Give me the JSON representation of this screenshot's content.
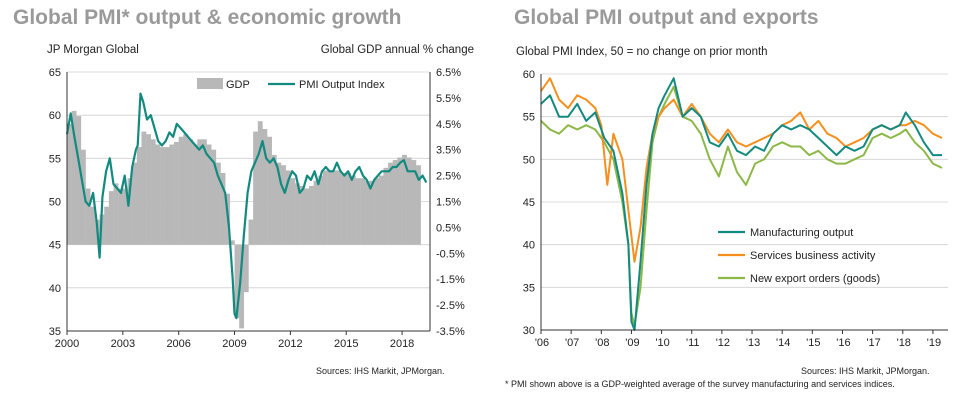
{
  "left": {
    "title": "Global PMI* output & economic growth",
    "left_axis_label": "JP Morgan Global",
    "right_axis_label": "Global GDP annual % change",
    "source": "Sources: IHS Markit, JPMorgan."
  },
  "right": {
    "title": "Global PMI output and exports",
    "axis_label": "Global PMI Index, 50 = no change on prior month",
    "source": "Sources: IHS Markit, JPMorgan."
  },
  "footnote": "* PMI shown above is a GDP-weighted average of the survey manufacturing and services indices.",
  "colors": {
    "gdp": "#b8b8b8",
    "pmi": "#138a80",
    "services": "#f5901e",
    "exports": "#8cb847",
    "grid": "#d0d0d0",
    "title": "#9a9a9a"
  },
  "chart_data": [
    {
      "type": "bar+line",
      "title": "Global PMI* output & economic growth",
      "ylabel_left": "JP Morgan Global",
      "ylabel_right": "Global GDP annual % change",
      "x_ticks": [
        "2000",
        "2003",
        "2006",
        "2009",
        "2012",
        "2015",
        "2018"
      ],
      "y_left_ticks": [
        "65",
        "60",
        "55",
        "50",
        "45",
        "40",
        "35"
      ],
      "y_right_ticks": [
        "6.5%",
        "5.5%",
        "4.5%",
        "3.5%",
        "2.5%",
        "1.5%",
        "0.5%",
        "-0.5%",
        "-1.5%",
        "-2.5%",
        "-3.5%"
      ],
      "ylim_left": [
        35,
        65
      ],
      "ylim_right": [
        -3.5,
        6.5
      ],
      "xlim": [
        2000.0,
        2019.5
      ],
      "legend": [
        "GDP",
        "PMI Output Index"
      ],
      "legend_position": "top-right",
      "series": [
        {
          "name": "GDP",
          "kind": "bar",
          "x": [
            2000.0,
            2000.25,
            2000.5,
            2000.75,
            2001.0,
            2001.25,
            2001.5,
            2001.75,
            2002.0,
            2002.25,
            2002.5,
            2002.75,
            2003.0,
            2003.25,
            2003.5,
            2003.75,
            2004.0,
            2004.25,
            2004.5,
            2004.75,
            2005.0,
            2005.25,
            2005.5,
            2005.75,
            2006.0,
            2006.25,
            2006.5,
            2006.75,
            2007.0,
            2007.25,
            2007.5,
            2007.75,
            2008.0,
            2008.25,
            2008.5,
            2008.75,
            2009.0,
            2009.25,
            2009.5,
            2009.75,
            2010.0,
            2010.25,
            2010.5,
            2010.75,
            2011.0,
            2011.25,
            2011.5,
            2011.75,
            2012.0,
            2012.25,
            2012.5,
            2012.75,
            2013.0,
            2013.25,
            2013.5,
            2013.75,
            2014.0,
            2014.25,
            2014.5,
            2014.75,
            2015.0,
            2015.25,
            2015.5,
            2015.75,
            2016.0,
            2016.25,
            2016.5,
            2016.75,
            2017.0,
            2017.25,
            2017.5,
            2017.75,
            2018.0,
            2018.25,
            2018.5,
            2018.75
          ],
          "values": [
            4.5,
            5.0,
            4.8,
            3.5,
            2.0,
            1.3,
            0.8,
            1.0,
            1.3,
            1.9,
            2.2,
            2.0,
            2.0,
            2.4,
            3.0,
            3.6,
            4.2,
            4.1,
            3.9,
            3.7,
            3.6,
            3.6,
            3.7,
            3.8,
            4.0,
            4.1,
            3.9,
            3.7,
            3.9,
            3.9,
            3.7,
            3.5,
            3.0,
            2.6,
            1.8,
            0.0,
            -3.0,
            -3.4,
            -2.0,
            0.8,
            4.2,
            4.6,
            4.3,
            4.0,
            3.3,
            3.0,
            2.9,
            2.7,
            2.4,
            2.2,
            2.1,
            2.0,
            2.1,
            2.3,
            2.5,
            2.7,
            2.7,
            2.7,
            2.7,
            2.6,
            2.6,
            2.5,
            2.4,
            2.4,
            2.3,
            2.3,
            2.4,
            2.5,
            2.8,
            3.0,
            3.1,
            3.2,
            3.3,
            3.2,
            3.1,
            2.9
          ]
        },
        {
          "name": "PMI Output Index",
          "kind": "line",
          "x": [
            2000.0,
            2000.2,
            2000.4,
            2000.6,
            2000.8,
            2001.0,
            2001.2,
            2001.4,
            2001.6,
            2001.75,
            2001.9,
            2002.1,
            2002.3,
            2002.5,
            2002.7,
            2002.9,
            2003.1,
            2003.3,
            2003.5,
            2003.7,
            2003.8,
            2003.95,
            2004.1,
            2004.3,
            2004.5,
            2004.7,
            2004.9,
            2005.1,
            2005.3,
            2005.5,
            2005.7,
            2005.9,
            2006.1,
            2006.3,
            2006.5,
            2006.7,
            2006.9,
            2007.1,
            2007.3,
            2007.5,
            2007.7,
            2007.9,
            2008.1,
            2008.3,
            2008.5,
            2008.7,
            2008.9,
            2009.0,
            2009.1,
            2009.3,
            2009.5,
            2009.7,
            2009.9,
            2010.1,
            2010.3,
            2010.5,
            2010.7,
            2010.9,
            2011.1,
            2011.3,
            2011.5,
            2011.7,
            2011.9,
            2012.1,
            2012.3,
            2012.5,
            2012.7,
            2012.9,
            2013.1,
            2013.3,
            2013.5,
            2013.7,
            2013.9,
            2014.1,
            2014.3,
            2014.5,
            2014.7,
            2014.9,
            2015.1,
            2015.3,
            2015.5,
            2015.7,
            2015.9,
            2016.1,
            2016.3,
            2016.5,
            2016.7,
            2016.9,
            2017.1,
            2017.3,
            2017.5,
            2017.7,
            2017.9,
            2018.1,
            2018.3,
            2018.5,
            2018.7,
            2018.9,
            2019.1,
            2019.3
          ],
          "values": [
            57.8,
            60.2,
            57.5,
            55.0,
            52.5,
            50.0,
            49.5,
            51.0,
            47.5,
            43.5,
            50.5,
            53.5,
            55.0,
            52.0,
            51.5,
            51.0,
            53.0,
            49.5,
            54.0,
            56.0,
            56.5,
            62.5,
            61.5,
            59.5,
            60.0,
            58.5,
            57.0,
            56.5,
            57.0,
            58.0,
            57.5,
            59.0,
            58.5,
            58.0,
            57.5,
            57.0,
            56.5,
            56.0,
            56.5,
            55.5,
            55.0,
            54.5,
            53.0,
            52.0,
            51.0,
            47.0,
            41.0,
            37.0,
            36.5,
            40.5,
            46.0,
            51.0,
            53.5,
            54.5,
            55.5,
            57.0,
            55.0,
            54.5,
            55.0,
            54.0,
            52.0,
            51.0,
            52.5,
            53.5,
            53.0,
            51.0,
            51.5,
            53.0,
            52.5,
            53.5,
            52.0,
            53.5,
            54.0,
            53.5,
            53.5,
            54.5,
            53.5,
            53.0,
            53.5,
            52.5,
            53.5,
            54.0,
            53.0,
            52.5,
            51.5,
            52.5,
            53.0,
            53.5,
            53.5,
            53.5,
            54.0,
            54.0,
            54.5,
            54.8,
            53.5,
            53.5,
            53.5,
            52.5,
            53.0,
            52.2
          ]
        }
      ]
    },
    {
      "type": "line",
      "title": "Global PMI output and exports",
      "ylabel": "Global PMI Index, 50 = no change on prior month",
      "x_ticks": [
        "'06",
        "'07",
        "'08",
        "'09",
        "'10",
        "'11",
        "'12",
        "'13",
        "'14",
        "'15",
        "'16",
        "'17",
        "'18",
        "'19"
      ],
      "y_ticks": [
        "60",
        "55",
        "50",
        "45",
        "40",
        "35",
        "30"
      ],
      "ylim": [
        30,
        60
      ],
      "xlim": [
        2006.0,
        2019.5
      ],
      "legend_position": "lower-center",
      "series": [
        {
          "name": "Manufacturing output",
          "x": [
            2006.0,
            2006.3,
            2006.6,
            2006.9,
            2007.2,
            2007.5,
            2007.8,
            2008.1,
            2008.4,
            2008.7,
            2008.9,
            2009.0,
            2009.1,
            2009.3,
            2009.5,
            2009.7,
            2009.9,
            2010.1,
            2010.4,
            2010.7,
            2011.0,
            2011.3,
            2011.6,
            2011.9,
            2012.2,
            2012.5,
            2012.8,
            2013.1,
            2013.4,
            2013.7,
            2014.0,
            2014.3,
            2014.6,
            2014.9,
            2015.2,
            2015.5,
            2015.8,
            2016.1,
            2016.4,
            2016.7,
            2017.0,
            2017.3,
            2017.6,
            2017.9,
            2018.1,
            2018.4,
            2018.7,
            2019.0,
            2019.3
          ],
          "values": [
            56.5,
            57.5,
            55.0,
            55.0,
            56.5,
            54.5,
            55.5,
            52.5,
            51.0,
            46.0,
            40.0,
            31.0,
            30.0,
            38.0,
            47.0,
            53.0,
            56.0,
            57.5,
            59.5,
            55.0,
            56.0,
            55.0,
            52.0,
            51.5,
            53.0,
            51.0,
            50.5,
            51.5,
            51.0,
            53.0,
            54.0,
            53.5,
            54.0,
            53.5,
            52.5,
            51.5,
            50.5,
            51.5,
            51.0,
            51.5,
            53.5,
            54.0,
            53.5,
            54.0,
            55.5,
            54.0,
            52.0,
            50.5,
            50.5
          ]
        },
        {
          "name": "Services business activity",
          "x": [
            2006.0,
            2006.3,
            2006.6,
            2006.9,
            2007.2,
            2007.5,
            2007.8,
            2008.0,
            2008.2,
            2008.4,
            2008.7,
            2008.9,
            2009.1,
            2009.3,
            2009.5,
            2009.7,
            2009.9,
            2010.1,
            2010.4,
            2010.7,
            2011.0,
            2011.3,
            2011.6,
            2011.9,
            2012.2,
            2012.5,
            2012.8,
            2013.1,
            2013.4,
            2013.7,
            2014.0,
            2014.3,
            2014.6,
            2014.9,
            2015.2,
            2015.5,
            2015.8,
            2016.1,
            2016.4,
            2016.7,
            2017.0,
            2017.3,
            2017.6,
            2017.9,
            2018.1,
            2018.4,
            2018.7,
            2019.0,
            2019.3
          ],
          "values": [
            58.0,
            59.5,
            57.0,
            56.0,
            57.5,
            57.0,
            56.0,
            54.0,
            47.0,
            53.0,
            50.0,
            44.0,
            38.0,
            42.0,
            49.0,
            53.0,
            55.0,
            56.0,
            57.0,
            55.0,
            56.5,
            55.0,
            53.0,
            52.0,
            53.5,
            52.0,
            51.5,
            52.0,
            52.5,
            53.0,
            54.0,
            54.5,
            55.5,
            53.5,
            54.5,
            53.0,
            52.5,
            51.5,
            52.0,
            52.5,
            53.5,
            54.0,
            53.5,
            54.0,
            54.0,
            54.5,
            54.0,
            53.0,
            52.5
          ]
        },
        {
          "name": "New export orders (goods)",
          "x": [
            2006.0,
            2006.3,
            2006.6,
            2006.9,
            2007.2,
            2007.5,
            2007.8,
            2008.1,
            2008.4,
            2008.7,
            2008.9,
            2009.0,
            2009.1,
            2009.3,
            2009.5,
            2009.7,
            2009.9,
            2010.1,
            2010.4,
            2010.7,
            2011.0,
            2011.3,
            2011.6,
            2011.9,
            2012.2,
            2012.5,
            2012.8,
            2013.1,
            2013.4,
            2013.7,
            2014.0,
            2014.3,
            2014.6,
            2014.9,
            2015.2,
            2015.5,
            2015.8,
            2016.1,
            2016.4,
            2016.7,
            2017.0,
            2017.3,
            2017.6,
            2017.9,
            2018.1,
            2018.4,
            2018.7,
            2019.0,
            2019.3
          ],
          "values": [
            54.5,
            53.5,
            53.0,
            54.0,
            53.5,
            54.0,
            53.5,
            52.0,
            50.0,
            45.0,
            40.0,
            32.0,
            30.5,
            35.0,
            44.0,
            52.0,
            55.0,
            56.5,
            58.5,
            55.0,
            54.5,
            53.0,
            50.0,
            48.0,
            51.5,
            48.5,
            47.0,
            49.5,
            50.0,
            51.5,
            52.0,
            51.5,
            51.5,
            50.5,
            51.0,
            50.0,
            49.5,
            49.5,
            50.0,
            50.5,
            52.5,
            53.0,
            52.5,
            53.0,
            53.5,
            52.0,
            51.0,
            49.5,
            49.0
          ]
        }
      ]
    }
  ]
}
